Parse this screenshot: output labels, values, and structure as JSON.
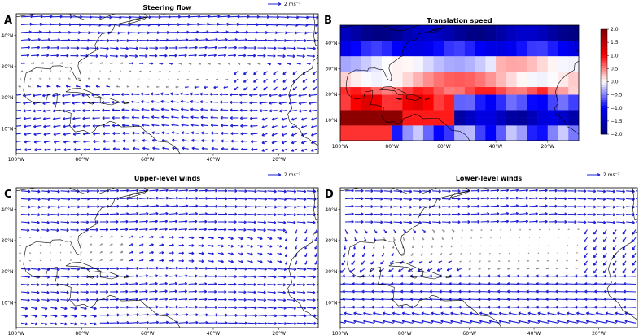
{
  "chart_data": [
    {
      "panel": "A",
      "type": "quiver",
      "title": "Steering flow",
      "reference_vector": "2 ms⁻¹",
      "x_ticks": [
        "100°W",
        "80°W",
        "60°W",
        "40°W",
        "20°W"
      ],
      "y_ticks": [
        "10°N",
        "20°N",
        "30°N",
        "40°N"
      ],
      "xlim": [
        -100,
        -8
      ],
      "ylim": [
        2,
        47
      ],
      "colors": {
        "strong": "#1f1fd4",
        "weak": "#8c8c8c"
      },
      "field": "mixed: westerlies north of ~32°N, easterly trades south, anticyclone near 30°N"
    },
    {
      "panel": "B",
      "type": "heatmap",
      "title": "Translation speed",
      "x_ticks": [
        "100°W",
        "80°W",
        "60°W",
        "40°W",
        "20°W"
      ],
      "y_ticks": [
        "10°N",
        "20°N",
        "30°N",
        "40°N"
      ],
      "xlim": [
        -100,
        -8
      ],
      "ylim": [
        2,
        47
      ],
      "colorbar": {
        "min": -2.0,
        "max": 2.0,
        "ticks": [
          "2.0",
          "1.5",
          "1.0",
          "0.5",
          "0.0",
          "−0.5",
          "−1.0",
          "−1.5",
          "−2.0"
        ],
        "cmap": "seismic"
      }
    },
    {
      "panel": "C",
      "type": "quiver",
      "title": "Upper-level winds",
      "reference_vector": "2 ms⁻¹",
      "x_ticks": [
        "100°W",
        "80°W",
        "60°W",
        "40°W",
        "20°W"
      ],
      "y_ticks": [
        "10°N",
        "20°N",
        "30°N",
        "40°N"
      ],
      "xlim": [
        -100,
        -8
      ],
      "ylim": [
        2,
        47
      ],
      "colors": {
        "strong": "#1f1fd4",
        "weak": "#8c8c8c"
      },
      "field": "strong westerlies over most latitudes"
    },
    {
      "panel": "D",
      "type": "quiver",
      "title": "Lower-level winds",
      "reference_vector": "2 ms⁻¹",
      "x_ticks": [
        "100°W",
        "80°W",
        "60°W",
        "40°W",
        "20°W"
      ],
      "y_ticks": [
        "10°N",
        "20°N",
        "30°N",
        "40°N"
      ],
      "xlim": [
        -100,
        -8
      ],
      "ylim": [
        2,
        47
      ],
      "colors": {
        "strong": "#1f1fd4",
        "weak": "#8c8c8c"
      },
      "field": "westerlies north, weak subtropical high, strong easterly trades south"
    }
  ]
}
